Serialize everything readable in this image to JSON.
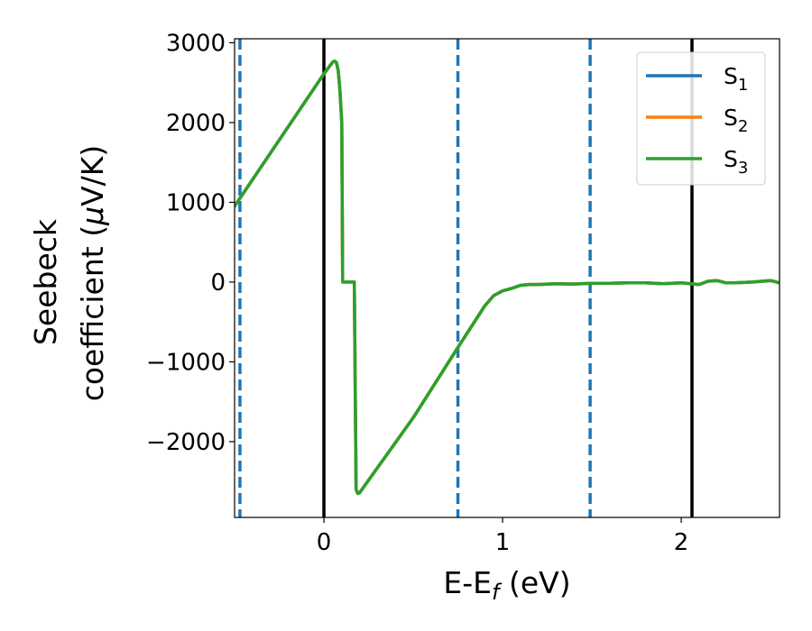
{
  "chart_data": {
    "type": "line",
    "xlabel_main": "E-E",
    "xlabel_sub": "f",
    "xlabel_unit": " (eV)",
    "ylabel_line1": "Seebeck",
    "ylabel_line2_main": "coefficient  (",
    "ylabel_line2_mu": "μ",
    "ylabel_line2_unit": "V/K)",
    "xlim": [
      -0.5,
      2.55
    ],
    "ylim": [
      -2950,
      3050
    ],
    "xticks": [
      0,
      1,
      2
    ],
    "xtick_labels": [
      "0",
      "1",
      "2"
    ],
    "yticks": [
      3000,
      2000,
      1000,
      0,
      -1000,
      -2000
    ],
    "ytick_labels": [
      "3000",
      "2000",
      "1000",
      "0",
      "−1000",
      "−2000"
    ],
    "grid": false,
    "legend_position": "top-right",
    "vertical_lines": [
      {
        "x": -0.47,
        "style": "dashed",
        "color": "#1f77b4"
      },
      {
        "x": 0.0,
        "style": "solid",
        "color": "#000000"
      },
      {
        "x": 0.75,
        "style": "dashed",
        "color": "#1f77b4"
      },
      {
        "x": 1.49,
        "style": "dashed",
        "color": "#1f77b4"
      },
      {
        "x": 2.06,
        "style": "solid",
        "color": "#000000"
      }
    ],
    "series": [
      {
        "name_main": "S",
        "name_sub": "1",
        "color": "#1f77b4",
        "x": [
          -0.5,
          0.0,
          0.05,
          0.06,
          0.07,
          0.08,
          0.09,
          0.1,
          0.105,
          0.11,
          0.17,
          0.18,
          0.19,
          0.2,
          0.5,
          0.75,
          0.9,
          0.95,
          1.0,
          1.05,
          1.1,
          1.15,
          1.2,
          1.3,
          1.4,
          1.5,
          1.6,
          1.7,
          1.8,
          1.9,
          2.0,
          2.1,
          2.15,
          2.2,
          2.25,
          2.3,
          2.4,
          2.5,
          2.55
        ],
        "y": [
          950,
          2610,
          2760,
          2770,
          2750,
          2650,
          2400,
          2000,
          0,
          0,
          0,
          -2600,
          -2650,
          -2640,
          -1700,
          -820,
          -300,
          -170,
          -110,
          -80,
          -40,
          -30,
          -30,
          -20,
          -25,
          -15,
          -15,
          -10,
          -10,
          -20,
          -10,
          -30,
          10,
          20,
          -10,
          -10,
          0,
          20,
          -10
        ]
      },
      {
        "name_main": "S",
        "name_sub": "2",
        "color": "#ff7f0e",
        "x": [
          -0.5,
          0.0,
          0.05,
          0.06,
          0.07,
          0.08,
          0.09,
          0.1,
          0.105,
          0.11,
          0.17,
          0.18,
          0.19,
          0.2,
          0.5,
          0.75,
          0.9,
          0.95,
          1.0,
          1.05,
          1.1,
          1.15,
          1.2,
          1.3,
          1.4,
          1.5,
          1.6,
          1.7,
          1.8,
          1.9,
          2.0,
          2.1,
          2.15,
          2.2,
          2.25,
          2.3,
          2.4,
          2.5,
          2.55
        ],
        "y": [
          950,
          2610,
          2760,
          2770,
          2750,
          2650,
          2400,
          2000,
          0,
          0,
          0,
          -2600,
          -2650,
          -2640,
          -1700,
          -820,
          -300,
          -170,
          -110,
          -80,
          -40,
          -30,
          -30,
          -20,
          -25,
          -15,
          -15,
          -10,
          -10,
          -20,
          -10,
          -30,
          10,
          20,
          -10,
          -10,
          0,
          20,
          -10
        ]
      },
      {
        "name_main": "S",
        "name_sub": "3",
        "color": "#2ca02c",
        "x": [
          -0.5,
          0.0,
          0.05,
          0.06,
          0.07,
          0.08,
          0.09,
          0.1,
          0.105,
          0.11,
          0.17,
          0.18,
          0.19,
          0.2,
          0.5,
          0.75,
          0.9,
          0.95,
          1.0,
          1.05,
          1.1,
          1.15,
          1.2,
          1.3,
          1.4,
          1.5,
          1.6,
          1.7,
          1.8,
          1.9,
          2.0,
          2.1,
          2.15,
          2.2,
          2.25,
          2.3,
          2.4,
          2.5,
          2.55
        ],
        "y": [
          950,
          2610,
          2760,
          2770,
          2750,
          2650,
          2400,
          2000,
          0,
          0,
          0,
          -2600,
          -2650,
          -2640,
          -1700,
          -820,
          -300,
          -170,
          -110,
          -80,
          -40,
          -30,
          -30,
          -20,
          -25,
          -15,
          -15,
          -10,
          -10,
          -20,
          -10,
          -30,
          10,
          20,
          -10,
          -10,
          0,
          20,
          -10
        ]
      }
    ]
  }
}
